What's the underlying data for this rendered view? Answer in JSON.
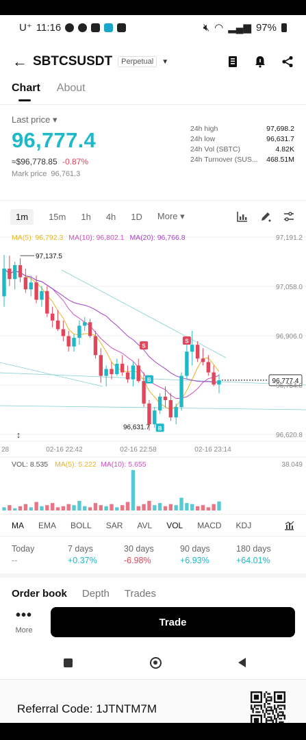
{
  "status_bar": {
    "carrier": "U⁺",
    "time": "11:16",
    "battery": "97%"
  },
  "header": {
    "symbol": "SBTCSUSDT",
    "badge": "Perpetual"
  },
  "tabs": [
    {
      "label": "Chart",
      "active": true
    },
    {
      "label": "About",
      "active": false
    }
  ],
  "price": {
    "label": "Last price ▾",
    "value": "96,777.4",
    "usd": "≈$96,778.85",
    "change": "-0.87%",
    "mark_label": "Mark price",
    "mark_value": "96,761.3"
  },
  "stats": [
    {
      "k": "24h high",
      "v": "97,698.2"
    },
    {
      "k": "24h low",
      "v": "96,631.7"
    },
    {
      "k": "24h Vol (SBTC)",
      "v": "4.82K"
    },
    {
      "k": "24h Turnover (SUS...",
      "v": "468.51M"
    }
  ],
  "intervals": [
    "1m",
    "15m",
    "1h",
    "4h",
    "1D",
    "More ▾"
  ],
  "active_interval": "1m",
  "ma_legend": [
    {
      "label": "MA(5): 96,792.3",
      "color": "#e6b422"
    },
    {
      "label": "MA(10): 96,802.1",
      "color": "#cc4fc4"
    },
    {
      "label": "MA(20): 96,766.8",
      "color": "#a340c8"
    }
  ],
  "chart_data": {
    "type": "candlestick",
    "y_axis_ticks": [
      "97,191.2",
      "97,058.0",
      "96,906.0",
      "96,754.0",
      "96,620.8"
    ],
    "x_axis_ticks": [
      "28",
      "02-16 22:42",
      "02-16 22:58",
      "02-16 23:14"
    ],
    "current_price_label": "96,777.4",
    "high_annotation": "97,137.5",
    "low_annotation": "96,631.7",
    "candle_values_note": "approximate",
    "candles": [
      [
        97020,
        97140,
        96990,
        97100
      ],
      [
        97100,
        97137.5,
        97050,
        97070
      ],
      [
        97070,
        97120,
        97040,
        97110
      ],
      [
        97110,
        97130,
        97060,
        97075
      ],
      [
        97075,
        97100,
        97030,
        97040
      ],
      [
        97040,
        97080,
        97020,
        97060
      ],
      [
        97060,
        97080,
        97000,
        97010
      ],
      [
        97010,
        97050,
        96990,
        97035
      ],
      [
        97035,
        97050,
        96960,
        96970
      ],
      [
        96970,
        96990,
        96930,
        96950
      ],
      [
        96950,
        96980,
        96920,
        96925
      ],
      [
        96925,
        96950,
        96890,
        96905
      ],
      [
        96905,
        96920,
        96860,
        96875
      ],
      [
        96875,
        96910,
        96860,
        96900
      ],
      [
        96900,
        96950,
        96880,
        96935
      ],
      [
        96935,
        96960,
        96920,
        96945
      ],
      [
        96945,
        96955,
        96900,
        96905
      ],
      [
        96905,
        96920,
        96840,
        96850
      ],
      [
        96850,
        96870,
        96770,
        96790
      ],
      [
        96790,
        96820,
        96760,
        96810
      ],
      [
        96810,
        96830,
        96780,
        96795
      ],
      [
        96795,
        96840,
        96790,
        96825
      ],
      [
        96825,
        96850,
        96790,
        96800
      ],
      [
        96800,
        96820,
        96770,
        96780
      ],
      [
        96780,
        96830,
        96760,
        96820
      ],
      [
        96820,
        96840,
        96770,
        96775
      ],
      [
        96775,
        96800,
        96700,
        96710
      ],
      [
        96710,
        96720,
        96631.7,
        96650
      ],
      [
        96650,
        96700,
        96640,
        96690
      ],
      [
        96690,
        96740,
        96680,
        96730
      ],
      [
        96730,
        96760,
        96700,
        96720
      ],
      [
        96720,
        96740,
        96660,
        96670
      ],
      [
        96670,
        96710,
        96650,
        96700
      ],
      [
        96700,
        96800,
        96690,
        96790
      ],
      [
        96790,
        96880,
        96780,
        96860
      ],
      [
        96860,
        96920,
        96820,
        96880
      ],
      [
        96880,
        96890,
        96830,
        96840
      ],
      [
        96840,
        96870,
        96820,
        96830
      ],
      [
        96830,
        96850,
        96790,
        96800
      ],
      [
        96800,
        96820,
        96760,
        96765
      ],
      [
        96765,
        96795,
        96740,
        96777.4
      ]
    ],
    "volume": {
      "label": "VOL: 8.535",
      "ma5": "MA(5): 5.222",
      "ma10": "MA(10): 5.655",
      "max_tick": "38.049",
      "values": [
        3,
        5,
        2,
        4,
        6,
        3,
        8,
        4,
        5,
        7,
        3,
        4,
        6,
        5,
        9,
        4,
        3,
        7,
        5,
        4,
        6,
        3,
        5,
        8,
        38,
        4,
        6,
        9,
        5,
        7,
        4,
        6,
        5,
        12,
        7,
        6,
        4,
        5,
        3,
        6,
        8.5
      ]
    }
  },
  "indicators": [
    "MA",
    "EMA",
    "BOLL",
    "SAR",
    "AVL",
    "VOL",
    "MACD",
    "KDJ"
  ],
  "performance": [
    {
      "k": "Today",
      "v": "--",
      "tone": "muted"
    },
    {
      "k": "7 days",
      "v": "+0.37%",
      "tone": "pos"
    },
    {
      "k": "30 days",
      "v": "-6.98%",
      "tone": "neg"
    },
    {
      "k": "90 days",
      "v": "+6.93%",
      "tone": "pos"
    },
    {
      "k": "180 days",
      "v": "+64.01%",
      "tone": "pos"
    }
  ],
  "book_tabs": [
    "Order book",
    "Depth",
    "Trades"
  ],
  "more_label": "More",
  "trade_label": "Trade",
  "referral": "Referral Code: 1JTNTM7M",
  "colors": {
    "up": "#1fb8c8",
    "down": "#e0475b",
    "accent": "#1fb8c8"
  }
}
